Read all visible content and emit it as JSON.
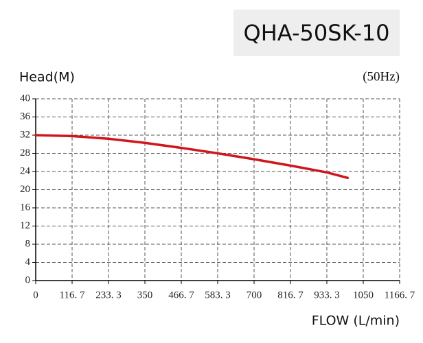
{
  "chart_data": {
    "type": "line",
    "title": "QHA-50SK-10",
    "subtitle": "(50Hz)",
    "y_label": "Head(M)",
    "x_label": "FLOW (L/min)",
    "x": [
      0,
      116.7,
      233.3,
      350,
      466.7,
      583.3,
      700,
      816.7,
      933.3,
      1000
    ],
    "series": [
      {
        "name": "QHA-50SK-10",
        "color": "#d0161b",
        "values": [
          32,
          31.8,
          31.2,
          30.3,
          29.2,
          28,
          26.7,
          25.3,
          23.8,
          22.6
        ]
      }
    ],
    "xlim": [
      0,
      1166.7
    ],
    "xticks": [
      0,
      {
        "value": 116.7,
        "label": "116. 7"
      },
      {
        "value": 233.3,
        "label": "233. 3"
      },
      350,
      {
        "value": 466.7,
        "label": "466. 7"
      },
      {
        "value": 583.3,
        "label": "583. 3"
      },
      700,
      {
        "value": 816.7,
        "label": "816. 7"
      },
      {
        "value": 933.3,
        "label": "933. 3"
      },
      1050,
      {
        "value": 1166.7,
        "label": "1166. 7"
      }
    ],
    "ylim": [
      0,
      40
    ],
    "yticks": [
      0,
      4,
      8,
      12,
      16,
      20,
      24,
      28,
      32,
      36,
      40
    ],
    "grid": true
  }
}
